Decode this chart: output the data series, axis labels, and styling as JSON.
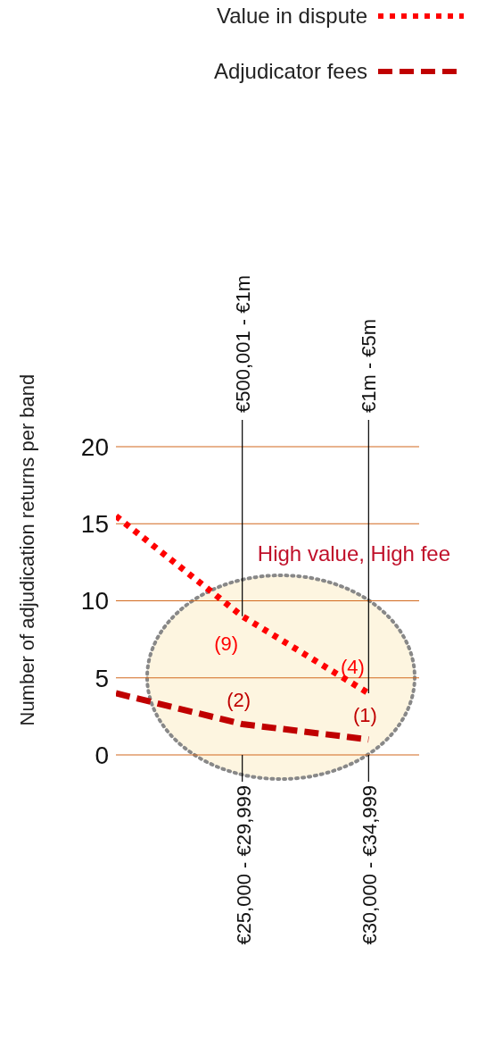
{
  "chart_data": {
    "type": "line",
    "ylabel": "Number of adjudication returns per band",
    "categories": [
      null,
      "€25,000 - €29,999",
      "€30,000 - €34,999"
    ],
    "ylim": [
      0,
      20
    ],
    "yticks": [
      0,
      5,
      10,
      15,
      20
    ],
    "grid": "y",
    "legend": "top right",
    "annotations": [
      "High value, High fee"
    ],
    "ref_lines": [
      {
        "axis": "x",
        "value": "€25,000 - €29,999",
        "label": "€500,001 - €1m",
        "color": "#000000"
      },
      {
        "axis": "x",
        "value": "€30,000 - €34,999",
        "label": "€1m - €5m",
        "color": "#000000"
      }
    ],
    "series": [
      {
        "name": "Value in dispute",
        "color": "#ff0000",
        "line_style": "dotted",
        "values": [
          15.5,
          9,
          4
        ],
        "value_labels": [
          null,
          "(9)",
          "(4)"
        ]
      },
      {
        "name": "Adjudicator fees",
        "color": "#c00000",
        "line_style": "dashed",
        "values": [
          4,
          2,
          1
        ],
        "value_labels": [
          null,
          "(2)",
          "(1)"
        ]
      }
    ]
  }
}
